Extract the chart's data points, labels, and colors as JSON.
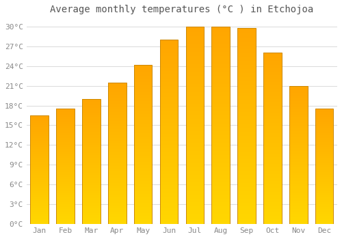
{
  "title": "Average monthly temperatures (°C ) in Etchojoa",
  "months": [
    "Jan",
    "Feb",
    "Mar",
    "Apr",
    "May",
    "Jun",
    "Jul",
    "Aug",
    "Sep",
    "Oct",
    "Nov",
    "Dec"
  ],
  "values": [
    16.5,
    17.5,
    19.0,
    21.5,
    24.2,
    28.0,
    30.0,
    30.0,
    29.8,
    26.0,
    21.0,
    17.5
  ],
  "bar_color_top": "#FFA500",
  "bar_color_bottom": "#FFD700",
  "bar_edge_color": "#CC8800",
  "ylim": [
    0,
    31
  ],
  "yticks": [
    0,
    3,
    6,
    9,
    12,
    15,
    18,
    21,
    24,
    27,
    30
  ],
  "ytick_labels": [
    "0°C",
    "3°C",
    "6°C",
    "9°C",
    "12°C",
    "15°C",
    "18°C",
    "21°C",
    "24°C",
    "27°C",
    "30°C"
  ],
  "background_color": "#FFFFFF",
  "grid_color": "#DDDDDD",
  "title_fontsize": 10,
  "tick_fontsize": 8,
  "tick_color": "#888888",
  "title_color": "#555555",
  "font_family": "monospace",
  "bar_width": 0.7
}
